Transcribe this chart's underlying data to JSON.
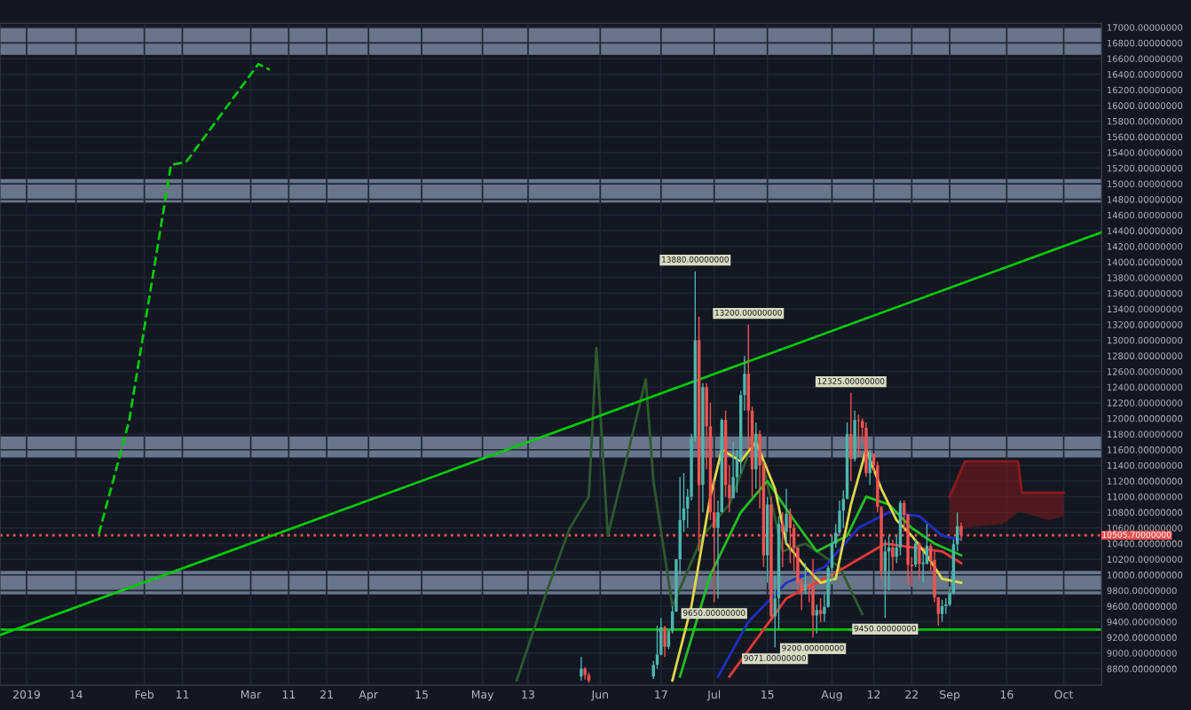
{
  "chart_data": {
    "type": "candlestick",
    "x": [
      "2019-05-27",
      "2019-05-28",
      "2019-05-29",
      "2019-06-15",
      "2019-06-16",
      "2019-06-17",
      "2019-06-18",
      "2019-06-19",
      "2019-06-20",
      "2019-06-21",
      "2019-06-22",
      "2019-06-23",
      "2019-06-24",
      "2019-06-25",
      "2019-06-26",
      "2019-06-27",
      "2019-06-28",
      "2019-06-29",
      "2019-06-30",
      "2019-07-01",
      "2019-07-02",
      "2019-07-03",
      "2019-07-04",
      "2019-07-05",
      "2019-07-06",
      "2019-07-07",
      "2019-07-08",
      "2019-07-09",
      "2019-07-10",
      "2019-07-11",
      "2019-07-12",
      "2019-07-13",
      "2019-07-14",
      "2019-07-15",
      "2019-07-16",
      "2019-07-17",
      "2019-07-18",
      "2019-07-19",
      "2019-07-20",
      "2019-07-21",
      "2019-07-22",
      "2019-07-23",
      "2019-07-24",
      "2019-07-25",
      "2019-07-26",
      "2019-07-27",
      "2019-07-28",
      "2019-07-29",
      "2019-07-30",
      "2019-07-31",
      "2019-08-01",
      "2019-08-02",
      "2019-08-03",
      "2019-08-04",
      "2019-08-05",
      "2019-08-06",
      "2019-08-07",
      "2019-08-08",
      "2019-08-09",
      "2019-08-10",
      "2019-08-11",
      "2019-08-12",
      "2019-08-13",
      "2019-08-14",
      "2019-08-15",
      "2019-08-16",
      "2019-08-17",
      "2019-08-18",
      "2019-08-19",
      "2019-08-20",
      "2019-08-21",
      "2019-08-22",
      "2019-08-23",
      "2019-08-24",
      "2019-08-25",
      "2019-08-26",
      "2019-08-27",
      "2019-08-28",
      "2019-08-29",
      "2019-08-30",
      "2019-08-31",
      "2019-09-01",
      "2019-09-02",
      "2019-09-03",
      "2019-09-04"
    ],
    "ohlc": [
      [
        8700,
        8950,
        8650,
        8800
      ],
      [
        8800,
        8820,
        8660,
        8720
      ],
      [
        8720,
        8750,
        8620,
        8650
      ],
      [
        8700,
        8900,
        8670,
        8850
      ],
      [
        8850,
        9350,
        8800,
        8980
      ],
      [
        8980,
        9450,
        8970,
        9330
      ],
      [
        9330,
        9350,
        8950,
        9080
      ],
      [
        9080,
        9300,
        9050,
        9280
      ],
      [
        9280,
        9600,
        9250,
        9530
      ],
      [
        9530,
        10200,
        9530,
        10200
      ],
      [
        10200,
        11250,
        10000,
        10700
      ],
      [
        10700,
        11300,
        10550,
        10850
      ],
      [
        10850,
        11100,
        10600,
        11000
      ],
      [
        11000,
        11800,
        10950,
        11750
      ],
      [
        11750,
        13880,
        11700,
        13000
      ],
      [
        13000,
        13300,
        10300,
        11150
      ],
      [
        11150,
        12450,
        10800,
        12400
      ],
      [
        12400,
        12450,
        11350,
        11900
      ],
      [
        11900,
        12200,
        10700,
        10800
      ],
      [
        10800,
        11200,
        9650,
        10600
      ],
      [
        10600,
        10950,
        9700,
        10800
      ],
      [
        10800,
        12000,
        10800,
        11980
      ],
      [
        11980,
        12100,
        11000,
        11150
      ],
      [
        11150,
        11400,
        10800,
        10980
      ],
      [
        10980,
        11700,
        10980,
        11250
      ],
      [
        11250,
        11600,
        11050,
        11480
      ],
      [
        11480,
        12350,
        11300,
        12300
      ],
      [
        12300,
        12800,
        12100,
        12570
      ],
      [
        12570,
        13200,
        11600,
        12100
      ],
      [
        12100,
        12150,
        11000,
        11350
      ],
      [
        11350,
        11950,
        11100,
        11800
      ],
      [
        11800,
        11850,
        10850,
        11400
      ],
      [
        11400,
        11450,
        10100,
        10250
      ],
      [
        10250,
        11000,
        9900,
        10900
      ],
      [
        10900,
        11000,
        9400,
        9470
      ],
      [
        9470,
        9990,
        9071,
        9700
      ],
      [
        9700,
        10750,
        9300,
        10650
      ],
      [
        10650,
        10800,
        10100,
        10550
      ],
      [
        10550,
        11100,
        10400,
        10780
      ],
      [
        10780,
        10850,
        10150,
        10600
      ],
      [
        10600,
        10650,
        10050,
        10350
      ],
      [
        10350,
        10350,
        9800,
        9900
      ],
      [
        9900,
        9950,
        9550,
        9800
      ],
      [
        9800,
        10150,
        9750,
        9880
      ],
      [
        9880,
        9900,
        9650,
        9850
      ],
      [
        9850,
        10200,
        9200,
        9480
      ],
      [
        9480,
        9620,
        9250,
        9550
      ],
      [
        9550,
        9700,
        9400,
        9500
      ],
      [
        9500,
        9750,
        9400,
        9590
      ],
      [
        9590,
        10120,
        9580,
        10090
      ],
      [
        10090,
        10500,
        9880,
        10400
      ],
      [
        10400,
        10650,
        10350,
        10540
      ],
      [
        10540,
        10950,
        10500,
        10820
      ],
      [
        10820,
        11080,
        10600,
        10970
      ],
      [
        10970,
        11950,
        10970,
        11800
      ],
      [
        11800,
        12325,
        11200,
        11480
      ],
      [
        11480,
        12100,
        11450,
        11980
      ],
      [
        11980,
        12050,
        11500,
        11970
      ],
      [
        11970,
        12000,
        11700,
        11880
      ],
      [
        11880,
        11950,
        11250,
        11300
      ],
      [
        11300,
        11600,
        11150,
        11550
      ],
      [
        11550,
        11550,
        11300,
        11400
      ],
      [
        11400,
        11450,
        10800,
        10870
      ],
      [
        10870,
        10880,
        9950,
        10050
      ],
      [
        10050,
        10450,
        9450,
        10300
      ],
      [
        10300,
        10500,
        9800,
        10350
      ],
      [
        10350,
        10450,
        10050,
        10230
      ],
      [
        10230,
        10500,
        10150,
        10350
      ],
      [
        10350,
        10950,
        10250,
        10920
      ],
      [
        10920,
        10950,
        10550,
        10770
      ],
      [
        10770,
        10780,
        9880,
        10130
      ],
      [
        10130,
        10230,
        9850,
        10110
      ],
      [
        10130,
        10450,
        10100,
        10400
      ],
      [
        10400,
        10420,
        9950,
        10140
      ],
      [
        10140,
        10300,
        9900,
        10160
      ],
      [
        10140,
        10650,
        10140,
        10370
      ],
      [
        10370,
        10400,
        10050,
        10190
      ],
      [
        10190,
        10300,
        9650,
        9710
      ],
      [
        9710,
        9720,
        9350,
        9500
      ],
      [
        9500,
        9680,
        9400,
        9600
      ],
      [
        9600,
        9700,
        9500,
        9620
      ],
      [
        9620,
        9850,
        9600,
        9770
      ],
      [
        9770,
        10450,
        9750,
        10390
      ],
      [
        10390,
        10800,
        10300,
        10620
      ],
      [
        10620,
        10667,
        10433,
        10505
      ]
    ],
    "series": [
      {
        "type": "line",
        "color": "#2e5a2e",
        "x": [
          "2019-05-10",
          "2019-05-18",
          "2019-05-24",
          "2019-05-29",
          "2019-05-31",
          "2019-06-03",
          "2019-06-08",
          "2019-06-13",
          "2019-06-15",
          "2019-06-20",
          "2019-06-28",
          "2019-07-05",
          "2019-07-12",
          "2019-07-19",
          "2019-07-25",
          "2019-08-03",
          "2019-08-09"
        ],
        "values": [
          8650,
          9800,
          10600,
          11000,
          12900,
          10500,
          11500,
          12500,
          11200,
          9600,
          10500,
          10900,
          11800,
          10300,
          10400,
          10100,
          9500
        ]
      },
      {
        "type": "line",
        "color": "#e53935",
        "x": [
          "2019-07-05",
          "2019-07-20",
          "2019-08-01",
          "2019-08-15",
          "2019-08-30",
          "2019-09-04"
        ],
        "values": [
          8700,
          9700,
          10000,
          10400,
          10300,
          10150
        ]
      },
      {
        "type": "line",
        "color": "#2030c0",
        "x": [
          "2019-07-02",
          "2019-07-10",
          "2019-07-20",
          "2019-07-30",
          "2019-08-08",
          "2019-08-16",
          "2019-08-24",
          "2019-08-30",
          "2019-09-04"
        ],
        "values": [
          8700,
          9400,
          9900,
          10100,
          10600,
          10800,
          10750,
          10500,
          10450
        ]
      },
      {
        "type": "line",
        "color": "#22c022",
        "x": [
          "2019-06-22",
          "2019-06-30",
          "2019-07-08",
          "2019-07-15",
          "2019-07-22",
          "2019-07-28",
          "2019-08-05",
          "2019-08-10",
          "2019-08-16",
          "2019-08-22",
          "2019-08-28",
          "2019-09-04"
        ],
        "values": [
          8700,
          10000,
          10800,
          11200,
          10700,
          10300,
          10500,
          11000,
          10900,
          10600,
          10400,
          10250
        ]
      },
      {
        "type": "line",
        "color": "#e0d84a",
        "x": [
          "2019-06-20",
          "2019-06-25",
          "2019-06-30",
          "2019-07-03",
          "2019-07-08",
          "2019-07-12",
          "2019-07-17",
          "2019-07-20",
          "2019-07-25",
          "2019-07-29",
          "2019-08-02",
          "2019-08-06",
          "2019-08-10",
          "2019-08-14",
          "2019-08-18",
          "2019-08-22",
          "2019-08-26",
          "2019-08-30",
          "2019-09-04"
        ],
        "values": [
          8650,
          9600,
          11000,
          11600,
          11450,
          11700,
          11100,
          10400,
          10100,
          9900,
          9950,
          10900,
          11600,
          11100,
          10700,
          10500,
          10250,
          9950,
          9900
        ]
      },
      {
        "type": "line",
        "color": "#8b1a1a",
        "x": [
          "2019-09-01",
          "2019-09-05",
          "2019-09-15",
          "2019-09-19",
          "2019-09-20",
          "2019-09-27",
          "2019-10-01"
        ],
        "values": [
          11000,
          11450,
          11450,
          11450,
          11050,
          11050,
          11050
        ],
        "lower": [
          10500,
          10600,
          10650,
          10800,
          10800,
          10700,
          10750
        ],
        "upper": [
          11000,
          11450,
          11450,
          11450,
          11050,
          11050,
          11050
        ]
      },
      {
        "type": "line",
        "color": "#00c800",
        "x": [
          "2018-12-25",
          "2019-10-11"
        ],
        "values": [
          9230,
          14380
        ]
      },
      {
        "type": "line",
        "color": "#00c800",
        "line_style": "dashed",
        "x": [
          "2019-01-20",
          "2019-01-28",
          "2019-02-08",
          "2019-02-12",
          "2019-03-03",
          "2019-03-06"
        ],
        "values": [
          10520,
          11970,
          15240,
          15280,
          16530,
          16460
        ]
      }
    ],
    "bands": [
      {
        "axis": "y",
        "from": 16650,
        "to": 17000,
        "color": "#8595ad"
      },
      {
        "axis": "y",
        "from": 14760,
        "to": 15060,
        "color": "#8595ad"
      },
      {
        "axis": "y",
        "from": 11500,
        "to": 11770,
        "color": "#8595ad"
      },
      {
        "axis": "y",
        "from": 9750,
        "to": 10050,
        "color": "#8595ad"
      }
    ],
    "ref_lines": [
      {
        "axis": "y",
        "value": 9300,
        "color": "#00c800",
        "line_style": "solid"
      },
      {
        "axis": "y",
        "value": 10505.7,
        "label": "10505.70000000",
        "color": "#ef5350",
        "line_style": "dotted"
      }
    ],
    "annotations": [
      {
        "text": "13880.00000000",
        "x": "2019-06-26",
        "y": 13880
      },
      {
        "text": "13200.00000000",
        "x": "2019-07-10",
        "y": 13200
      },
      {
        "text": "12325.00000000",
        "x": "2019-08-06",
        "y": 12325
      },
      {
        "text": "9650.00000000",
        "x": "2019-07-01",
        "y": 9650
      },
      {
        "text": "9071.00000000",
        "x": "2019-07-17",
        "y": 9071
      },
      {
        "text": "9200.00000000",
        "x": "2019-07-27",
        "y": 9200
      },
      {
        "text": "9450.00000000",
        "x": "2019-08-15",
        "y": 9450
      }
    ],
    "xlim": [
      "2018-12-25",
      "2019-10-11"
    ],
    "xticks": [
      {
        "value": "2019-01-01",
        "label": "2019"
      },
      {
        "value": "2019-01-14",
        "label": "14"
      },
      {
        "value": "2019-02-01",
        "label": "Feb"
      },
      {
        "value": "2019-02-11",
        "label": "11"
      },
      {
        "value": "2019-03-01",
        "label": "Mar"
      },
      {
        "value": "2019-03-11",
        "label": "11"
      },
      {
        "value": "2019-03-21",
        "label": "21"
      },
      {
        "value": "2019-04-01",
        "label": "Apr"
      },
      {
        "value": "2019-04-15",
        "label": "15"
      },
      {
        "value": "2019-05-01",
        "label": "May"
      },
      {
        "value": "2019-05-13",
        "label": "13"
      },
      {
        "value": "2019-06-01",
        "label": "Jun"
      },
      {
        "value": "2019-06-17",
        "label": "17"
      },
      {
        "value": "2019-07-01",
        "label": "Jul"
      },
      {
        "value": "2019-07-15",
        "label": "15"
      },
      {
        "value": "2019-08-01",
        "label": "Aug"
      },
      {
        "value": "2019-08-12",
        "label": "12"
      },
      {
        "value": "2019-08-22",
        "label": "22"
      },
      {
        "value": "2019-09-01",
        "label": "Sep"
      },
      {
        "value": "2019-09-16",
        "label": "16"
      },
      {
        "value": "2019-10-01",
        "label": "Oct"
      }
    ],
    "ylim": [
      8590,
      17050
    ],
    "yticks": [
      {
        "value": 8800,
        "label": "8800.00000000"
      },
      {
        "value": 9000,
        "label": "9000.00000000"
      },
      {
        "value": 9200,
        "label": "9200.00000000"
      },
      {
        "value": 9400,
        "label": "9400.00000000"
      },
      {
        "value": 9600,
        "label": "9600.00000000"
      },
      {
        "value": 9800,
        "label": "9800.00000000"
      },
      {
        "value": 10000,
        "label": "10000.00000000"
      },
      {
        "value": 10200,
        "label": "10200.00000000"
      },
      {
        "value": 10400,
        "label": "10400.00000000"
      },
      {
        "value": 10600,
        "label": "10600.00000000"
      },
      {
        "value": 10800,
        "label": "10800.00000000"
      },
      {
        "value": 11000,
        "label": "11000.00000000"
      },
      {
        "value": 11200,
        "label": "11200.00000000"
      },
      {
        "value": 11400,
        "label": "11400.00000000"
      },
      {
        "value": 11600,
        "label": "11600.00000000"
      },
      {
        "value": 11800,
        "label": "11800.00000000"
      },
      {
        "value": 12000,
        "label": "12000.00000000"
      },
      {
        "value": 12200,
        "label": "12200.00000000"
      },
      {
        "value": 12400,
        "label": "12400.00000000"
      },
      {
        "value": 12600,
        "label": "12600.00000000"
      },
      {
        "value": 12800,
        "label": "12800.00000000"
      },
      {
        "value": 13000,
        "label": "13000.00000000"
      },
      {
        "value": 13200,
        "label": "13200.00000000"
      },
      {
        "value": 13400,
        "label": "13400.00000000"
      },
      {
        "value": 13600,
        "label": "13600.00000000"
      },
      {
        "value": 13800,
        "label": "13800.00000000"
      },
      {
        "value": 14000,
        "label": "14000.00000000"
      },
      {
        "value": 14200,
        "label": "14200.00000000"
      },
      {
        "value": 14400,
        "label": "14400.00000000"
      },
      {
        "value": 14600,
        "label": "14600.00000000"
      },
      {
        "value": 14800,
        "label": "14800.00000000"
      },
      {
        "value": 15000,
        "label": "15000.00000000"
      },
      {
        "value": 15200,
        "label": "15200.00000000"
      },
      {
        "value": 15400,
        "label": "15400.00000000"
      },
      {
        "value": 15600,
        "label": "15600.00000000"
      },
      {
        "value": 15800,
        "label": "15800.00000000"
      },
      {
        "value": 16000,
        "label": "16000.00000000"
      },
      {
        "value": 16200,
        "label": "16200.00000000"
      },
      {
        "value": 16400,
        "label": "16400.00000000"
      },
      {
        "value": 16600,
        "label": "16600.00000000"
      },
      {
        "value": 16800,
        "label": "16800.00000000"
      },
      {
        "value": 17000,
        "label": "17000.00000000"
      }
    ],
    "grid": true
  }
}
